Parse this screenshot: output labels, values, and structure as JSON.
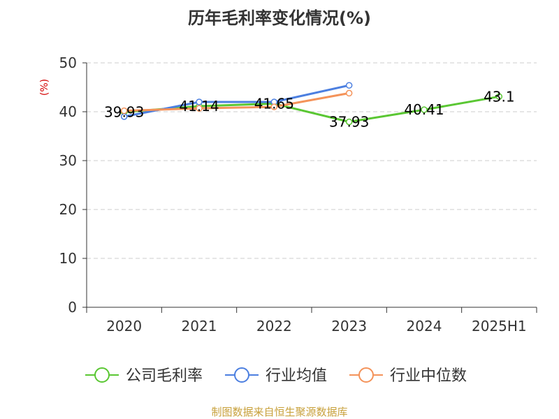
{
  "chart_data": {
    "type": "line",
    "title": "历年毛利率变化情况(%)",
    "ylabel": "(%)",
    "xlabel": "",
    "categories": [
      "2020",
      "2021",
      "2022",
      "2023",
      "2024",
      "2025H1"
    ],
    "y_ticks": [
      "0",
      "10",
      "20",
      "30",
      "40",
      "50"
    ],
    "ylim": [
      0,
      50
    ],
    "grid": "horizontal-dashed",
    "legend_position": "bottom",
    "series": [
      {
        "name": "公司毛利率",
        "color": "#5ac733",
        "values": [
          39.93,
          41.14,
          41.65,
          37.93,
          40.41,
          43.1
        ],
        "labels": [
          "39.93",
          "41.14",
          "41.65",
          "37.93",
          "40.41",
          "43.1"
        ]
      },
      {
        "name": "行业均值",
        "color": "#4c7fe0",
        "values": [
          39.0,
          42.0,
          42.0,
          45.4,
          null,
          null
        ]
      },
      {
        "name": "行业中位数",
        "color": "#f4935a",
        "values": [
          40.2,
          40.7,
          41.0,
          43.8,
          null,
          null
        ]
      }
    ],
    "source": "制图数据来自恒生聚源数据库"
  }
}
